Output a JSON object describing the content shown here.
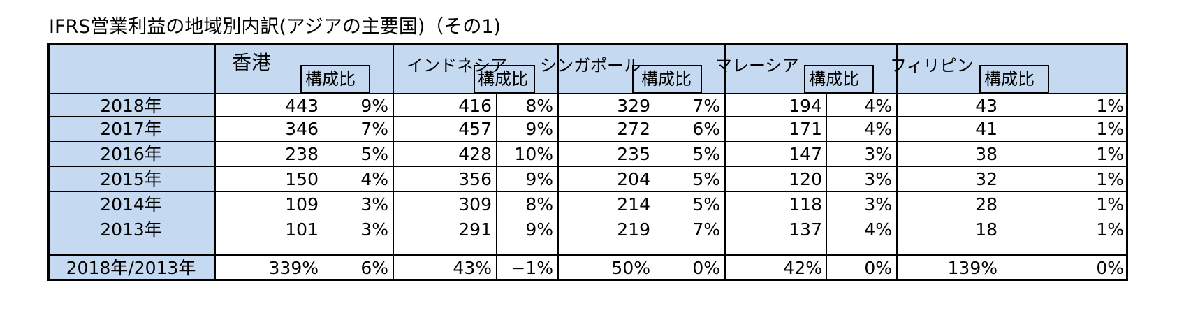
{
  "title": "IFRS営業利益の地域別内訳(アジアの主要国)（その1)",
  "header": {
    "countries": [
      "香港",
      "インドネシア",
      "シンガポール",
      "マレーシア",
      "フィリピン"
    ],
    "ratio_label": "構成比"
  },
  "rows": [
    {
      "label": "2018年",
      "cells": [
        "443",
        "9%",
        "416",
        "8%",
        "329",
        "7%",
        "194",
        "4%",
        "43",
        "1%"
      ]
    },
    {
      "label": "2017年",
      "cells": [
        "346",
        "7%",
        "457",
        "9%",
        "272",
        "6%",
        "171",
        "4%",
        "41",
        "1%"
      ]
    },
    {
      "label": "2016年",
      "cells": [
        "238",
        "5%",
        "428",
        "10%",
        "235",
        "5%",
        "147",
        "3%",
        "38",
        "1%"
      ]
    },
    {
      "label": "2015年",
      "cells": [
        "150",
        "4%",
        "356",
        "9%",
        "204",
        "5%",
        "120",
        "3%",
        "32",
        "1%"
      ]
    },
    {
      "label": "2014年",
      "cells": [
        "109",
        "3%",
        "309",
        "8%",
        "214",
        "5%",
        "118",
        "3%",
        "28",
        "1%"
      ]
    },
    {
      "label": "2013年",
      "cells": [
        "101",
        "3%",
        "291",
        "9%",
        "219",
        "7%",
        "137",
        "4%",
        "18",
        "1%"
      ]
    }
  ],
  "summary": {
    "label": "2018年/2013年",
    "cells": [
      "339%",
      "6%",
      "43%",
      "−1%",
      "50%",
      "0%",
      "42%",
      "0%",
      "139%",
      "0%"
    ]
  }
}
